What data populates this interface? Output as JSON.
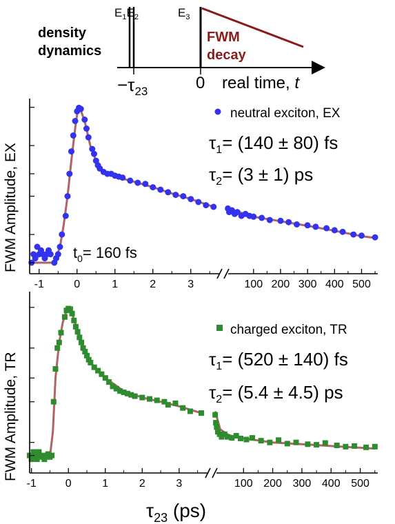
{
  "schematic": {
    "pulse_labels": {
      "e1": "E",
      "e1_sub": "1",
      "e2": "E",
      "e2_sub": "2",
      "e3": "E",
      "e3_sub": "3"
    },
    "density_line1": "density",
    "density_line2": "dynamics",
    "fwm_line1": "FWM",
    "fwm_line2": "decay",
    "tau_label": "−τ",
    "tau_sub": "23",
    "zero_label": "0",
    "axis_label": "real time, ",
    "axis_var": "t",
    "colors": {
      "fwm": "#8b1a1a",
      "pulse": "#000000"
    }
  },
  "chart_data": [
    {
      "type": "scatter",
      "ylabel": "FWM Amplitude, EX",
      "yscale": "log",
      "legend": {
        "label": "neutral exciton, EX",
        "marker": "circle",
        "color": "#3333ee",
        "position": "top-right"
      },
      "x_ticks_left": [
        "-1",
        "0",
        "1",
        "2",
        "3"
      ],
      "x_ticks_right": [
        "100",
        "200",
        "300",
        "400",
        "500"
      ],
      "annotations": {
        "tau1": {
          "prefix": "τ",
          "sub": "1",
          "text": "= (140 ±  80) fs"
        },
        "tau2": {
          "prefix": "τ",
          "sub": "2",
          "text": "= (3 ± 1) ps"
        },
        "t0": {
          "prefix": "t",
          "sub": "0",
          "text": "= 160 fs"
        }
      },
      "marker_color": "#3333ee",
      "fit_color": "#b06464",
      "points": [
        [
          -1.2,
          0.06
        ],
        [
          -1.15,
          0.07
        ],
        [
          -1.1,
          0.065
        ],
        [
          -1.05,
          0.08
        ],
        [
          -1.0,
          0.07
        ],
        [
          -0.95,
          0.075
        ],
        [
          -0.9,
          0.07
        ],
        [
          -0.85,
          0.065
        ],
        [
          -0.8,
          0.07
        ],
        [
          -0.75,
          0.075
        ],
        [
          -0.7,
          0.07
        ],
        [
          -0.6,
          0.06
        ],
        [
          -0.55,
          0.065
        ],
        [
          -0.5,
          0.07
        ],
        [
          -0.45,
          0.08
        ],
        [
          -0.4,
          0.1
        ],
        [
          -0.3,
          0.14
        ],
        [
          -0.25,
          0.2
        ],
        [
          -0.2,
          0.3
        ],
        [
          -0.15,
          0.45
        ],
        [
          -0.1,
          0.6
        ],
        [
          -0.05,
          0.78
        ],
        [
          0.0,
          0.93
        ],
        [
          0.05,
          0.99
        ],
        [
          0.1,
          0.97
        ],
        [
          0.2,
          0.8
        ],
        [
          0.25,
          0.68
        ],
        [
          0.3,
          0.58
        ],
        [
          0.4,
          0.47
        ],
        [
          0.45,
          0.43
        ],
        [
          0.5,
          0.38
        ],
        [
          0.55,
          0.35
        ],
        [
          0.6,
          0.33
        ],
        [
          0.7,
          0.31
        ],
        [
          0.8,
          0.3
        ],
        [
          0.9,
          0.3
        ],
        [
          1.0,
          0.29
        ],
        [
          1.1,
          0.285
        ],
        [
          1.2,
          0.28
        ],
        [
          1.4,
          0.265
        ],
        [
          1.6,
          0.255
        ],
        [
          1.8,
          0.25
        ],
        [
          2.0,
          0.235
        ],
        [
          2.2,
          0.225
        ],
        [
          2.4,
          0.215
        ],
        [
          2.6,
          0.205
        ],
        [
          2.8,
          0.2
        ],
        [
          3.0,
          0.19
        ],
        [
          3.2,
          0.18
        ],
        [
          3.4,
          0.17
        ],
        [
          3.6,
          0.165
        ],
        [
          5,
          0.16
        ],
        [
          10,
          0.15
        ],
        [
          20,
          0.155
        ],
        [
          30,
          0.145
        ],
        [
          40,
          0.15
        ],
        [
          55,
          0.14
        ],
        [
          70,
          0.145
        ],
        [
          85,
          0.14
        ],
        [
          100,
          0.138
        ],
        [
          130,
          0.135
        ],
        [
          160,
          0.13
        ],
        [
          200,
          0.128
        ],
        [
          230,
          0.125
        ],
        [
          260,
          0.12
        ],
        [
          300,
          0.118
        ],
        [
          330,
          0.115
        ],
        [
          370,
          0.112
        ],
        [
          400,
          0.108
        ],
        [
          430,
          0.105
        ],
        [
          470,
          0.1
        ],
        [
          500,
          0.098
        ],
        [
          550,
          0.095
        ]
      ],
      "fit": [
        [
          -1.2,
          0.06
        ],
        [
          -0.6,
          0.06
        ],
        [
          -0.45,
          0.08
        ],
        [
          -0.35,
          0.12
        ],
        [
          -0.25,
          0.2
        ],
        [
          -0.15,
          0.38
        ],
        [
          -0.05,
          0.68
        ],
        [
          0.02,
          0.95
        ],
        [
          0.08,
          0.98
        ],
        [
          0.2,
          0.78
        ],
        [
          0.35,
          0.5
        ],
        [
          0.5,
          0.38
        ],
        [
          0.7,
          0.31
        ],
        [
          1.0,
          0.285
        ],
        [
          1.5,
          0.26
        ],
        [
          2.0,
          0.235
        ],
        [
          2.5,
          0.21
        ],
        [
          3.0,
          0.19
        ],
        [
          3.6,
          0.165
        ],
        [
          5,
          0.16
        ],
        [
          100,
          0.138
        ],
        [
          200,
          0.127
        ],
        [
          300,
          0.117
        ],
        [
          400,
          0.107
        ],
        [
          500,
          0.097
        ],
        [
          550,
          0.094
        ]
      ]
    },
    {
      "type": "scatter",
      "ylabel": "FWM Amplitude, TR",
      "xlabel": "τ",
      "xlabel_sub": "23",
      "xlabel_unit": " (ps)",
      "yscale": "log",
      "legend": {
        "label": "charged exciton, TR",
        "marker": "square",
        "color": "#2e8b2e",
        "position": "top-right"
      },
      "x_ticks_left": [
        "-1",
        "0",
        "1",
        "2",
        "3"
      ],
      "x_ticks_right": [
        "100",
        "200",
        "300",
        "400",
        "500"
      ],
      "annotations": {
        "tau1": {
          "prefix": "τ",
          "sub": "1",
          "text": "= (520 ± 140) fs"
        },
        "tau2": {
          "prefix": "τ",
          "sub": "2",
          "text": "= (5.4 ± 4.5) ps"
        }
      },
      "marker_color": "#2e8b2e",
      "fit_color": "#b06464",
      "points": [
        [
          -1.05,
          0.08
        ],
        [
          -1.0,
          0.075
        ],
        [
          -0.95,
          0.085
        ],
        [
          -0.9,
          0.08
        ],
        [
          -0.85,
          0.075
        ],
        [
          -0.8,
          0.085
        ],
        [
          -0.75,
          0.08
        ],
        [
          -0.7,
          0.078
        ],
        [
          -0.65,
          0.075
        ],
        [
          -0.6,
          0.08
        ],
        [
          -0.55,
          0.082
        ],
        [
          -0.5,
          0.078
        ],
        [
          -0.45,
          0.08
        ],
        [
          -0.4,
          0.2
        ],
        [
          -0.35,
          0.35
        ],
        [
          -0.3,
          0.5
        ],
        [
          -0.25,
          0.55
        ],
        [
          -0.2,
          0.65
        ],
        [
          -0.1,
          0.85
        ],
        [
          -0.05,
          0.95
        ],
        [
          0.0,
          0.98
        ],
        [
          0.05,
          0.97
        ],
        [
          0.1,
          0.9
        ],
        [
          0.15,
          0.8
        ],
        [
          0.2,
          0.72
        ],
        [
          0.25,
          0.66
        ],
        [
          0.3,
          0.6
        ],
        [
          0.35,
          0.55
        ],
        [
          0.4,
          0.5
        ],
        [
          0.45,
          0.47
        ],
        [
          0.5,
          0.44
        ],
        [
          0.55,
          0.41
        ],
        [
          0.6,
          0.39
        ],
        [
          0.7,
          0.36
        ],
        [
          0.8,
          0.34
        ],
        [
          0.9,
          0.32
        ],
        [
          1.0,
          0.3
        ],
        [
          1.1,
          0.28
        ],
        [
          1.2,
          0.26
        ],
        [
          1.3,
          0.25
        ],
        [
          1.4,
          0.24
        ],
        [
          1.5,
          0.235
        ],
        [
          1.6,
          0.23
        ],
        [
          1.7,
          0.225
        ],
        [
          1.8,
          0.22
        ],
        [
          2.0,
          0.215
        ],
        [
          2.2,
          0.21
        ],
        [
          2.4,
          0.205
        ],
        [
          2.6,
          0.2
        ],
        [
          2.7,
          0.19
        ],
        [
          2.9,
          0.195
        ],
        [
          3.1,
          0.18
        ],
        [
          3.3,
          0.17
        ],
        [
          3.6,
          0.165
        ],
        [
          3,
          0.16
        ],
        [
          5,
          0.14
        ],
        [
          8,
          0.13
        ],
        [
          12,
          0.12
        ],
        [
          18,
          0.115
        ],
        [
          25,
          0.11
        ],
        [
          35,
          0.115
        ],
        [
          45,
          0.11
        ],
        [
          60,
          0.108
        ],
        [
          75,
          0.112
        ],
        [
          90,
          0.107
        ],
        [
          110,
          0.105
        ],
        [
          130,
          0.108
        ],
        [
          160,
          0.103
        ],
        [
          190,
          0.1
        ],
        [
          220,
          0.104
        ],
        [
          250,
          0.098
        ],
        [
          280,
          0.1
        ],
        [
          320,
          0.097
        ],
        [
          350,
          0.096
        ],
        [
          380,
          0.099
        ],
        [
          420,
          0.095
        ],
        [
          450,
          0.093
        ],
        [
          480,
          0.094
        ],
        [
          520,
          0.092
        ],
        [
          550,
          0.093
        ]
      ],
      "fit": [
        [
          -1.05,
          0.08
        ],
        [
          -0.5,
          0.078
        ],
        [
          -0.42,
          0.12
        ],
        [
          -0.35,
          0.3
        ],
        [
          -0.25,
          0.55
        ],
        [
          -0.15,
          0.78
        ],
        [
          -0.05,
          0.94
        ],
        [
          0.02,
          0.98
        ],
        [
          0.1,
          0.9
        ],
        [
          0.2,
          0.74
        ],
        [
          0.35,
          0.55
        ],
        [
          0.5,
          0.44
        ],
        [
          0.7,
          0.36
        ],
        [
          1.0,
          0.3
        ],
        [
          1.5,
          0.24
        ],
        [
          2.0,
          0.215
        ],
        [
          2.5,
          0.2
        ],
        [
          3.0,
          0.185
        ],
        [
          3.6,
          0.165
        ],
        [
          3,
          0.17
        ],
        [
          20,
          0.125
        ],
        [
          50,
          0.113
        ],
        [
          100,
          0.107
        ],
        [
          200,
          0.1
        ],
        [
          300,
          0.097
        ],
        [
          400,
          0.094
        ],
        [
          550,
          0.09
        ]
      ]
    }
  ]
}
